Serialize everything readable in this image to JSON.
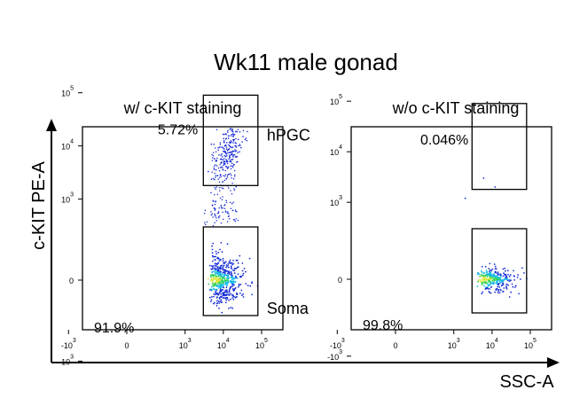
{
  "figure": {
    "title": "Wk11 male gonad",
    "y_axis_label": "c-KIT  PE-A",
    "x_axis_label": "SSC-A"
  },
  "chart_data": [
    {
      "type": "scatter",
      "title": "w/ c-KIT staining",
      "xlabel": "SSC-A",
      "ylabel": "c-KIT  PE-A",
      "scale": "biexponential",
      "x_ticks": [
        {
          "base": "-10",
          "exp": "3"
        },
        {
          "base": "0",
          "exp": ""
        },
        {
          "base": "10",
          "exp": "3"
        },
        {
          "base": "10",
          "exp": "4"
        },
        {
          "base": "10",
          "exp": "5"
        }
      ],
      "y_ticks": [
        {
          "base": "10",
          "exp": "5"
        },
        {
          "base": "10",
          "exp": "4"
        },
        {
          "base": "10",
          "exp": "3"
        },
        {
          "base": "0",
          "exp": ""
        },
        {
          "base": "-10",
          "exp": "3"
        }
      ],
      "gates": [
        {
          "name": "hPGC",
          "label": "hPGC",
          "percent": "5.72%",
          "x_range": [
            3000,
            80000
          ],
          "y_range": [
            1800,
            90000
          ]
        },
        {
          "name": "Soma",
          "label": "Soma",
          "percent": "91.9%",
          "x_range": [
            3000,
            80000
          ],
          "y_range": [
            -200,
            300
          ]
        }
      ]
    },
    {
      "type": "scatter",
      "title": "w/o c-KIT staining",
      "xlabel": "SSC-A",
      "ylabel": "c-KIT  PE-A",
      "scale": "biexponential",
      "x_ticks": [
        {
          "base": "-10",
          "exp": "3"
        },
        {
          "base": "0",
          "exp": ""
        },
        {
          "base": "10",
          "exp": "3"
        },
        {
          "base": "10",
          "exp": "4"
        },
        {
          "base": "10",
          "exp": "5"
        }
      ],
      "y_ticks": [
        {
          "base": "10",
          "exp": "5"
        },
        {
          "base": "10",
          "exp": "4"
        },
        {
          "base": "10",
          "exp": "3"
        },
        {
          "base": "0",
          "exp": ""
        },
        {
          "base": "-10",
          "exp": "3"
        }
      ],
      "gates": [
        {
          "name": "hPGC",
          "label": "",
          "percent": "0.046%",
          "x_range": [
            3000,
            80000
          ],
          "y_range": [
            1800,
            90000
          ]
        },
        {
          "name": "Soma",
          "label": "",
          "percent": "99.8%",
          "x_range": [
            3000,
            80000
          ],
          "y_range": [
            -200,
            300
          ]
        }
      ]
    }
  ],
  "colors": {
    "axis": "#000000",
    "low_density": "#1a2fd6",
    "mid_density": "#14b8e6",
    "high_density": "#2fd35a",
    "peak_density": "#d8e63a"
  }
}
